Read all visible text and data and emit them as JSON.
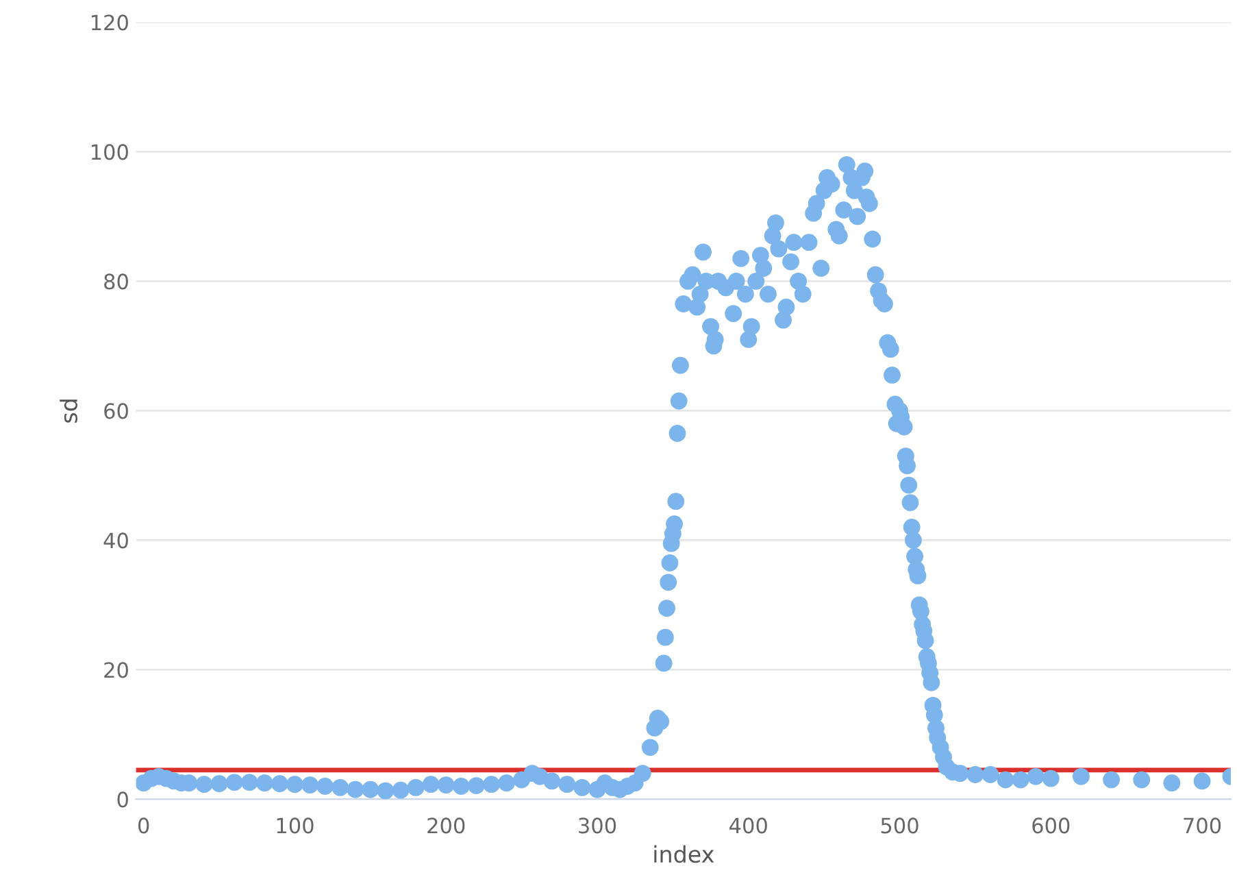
{
  "chart_data": {
    "type": "scatter",
    "xlabel": "index",
    "ylabel": "sd",
    "xlim": [
      -5,
      719
    ],
    "ylim": [
      0,
      120
    ],
    "xticks": [
      0,
      100,
      200,
      300,
      400,
      500,
      600,
      700
    ],
    "yticks": [
      0,
      20,
      40,
      60,
      80,
      100,
      120
    ],
    "grid": "y",
    "marker": "circle",
    "ref_lines": [
      {
        "axis": "y",
        "value": 4.5,
        "color": "#d9302c"
      }
    ],
    "series": [
      {
        "color": "#7cb5ec",
        "x": [
          0,
          5,
          10,
          15,
          20,
          25,
          30,
          40,
          50,
          60,
          70,
          80,
          90,
          100,
          110,
          120,
          130,
          140,
          150,
          160,
          170,
          180,
          190,
          200,
          210,
          220,
          230,
          240,
          250,
          257,
          262,
          270,
          280,
          290,
          300,
          305,
          310,
          315,
          320,
          325,
          330,
          335,
          338,
          340,
          342,
          344,
          345,
          346,
          347,
          348,
          349,
          350,
          351,
          352,
          353,
          354,
          355,
          357,
          360,
          363,
          366,
          368,
          370,
          372,
          375,
          377,
          378,
          380,
          385,
          390,
          392,
          395,
          398,
          400,
          402,
          405,
          408,
          410,
          413,
          416,
          418,
          420,
          423,
          425,
          428,
          430,
          433,
          436,
          440,
          443,
          445,
          448,
          450,
          452,
          455,
          458,
          460,
          463,
          465,
          468,
          470,
          472,
          475,
          477,
          478,
          480,
          482,
          484,
          486,
          488,
          490,
          492,
          494,
          495,
          497,
          498,
          500,
          501,
          503,
          504,
          505,
          506,
          507,
          508,
          509,
          510,
          511,
          512,
          513,
          514,
          515,
          516,
          517,
          518,
          519,
          520,
          521,
          522,
          523,
          524,
          525,
          527,
          529,
          531,
          535,
          540,
          550,
          560,
          570,
          580,
          590,
          600,
          620,
          640,
          660,
          680,
          700,
          719
        ],
        "values": [
          2.5,
          3.2,
          3.5,
          3.2,
          2.8,
          2.5,
          2.5,
          2.3,
          2.4,
          2.6,
          2.6,
          2.5,
          2.4,
          2.3,
          2.2,
          2.0,
          1.8,
          1.5,
          1.5,
          1.3,
          1.4,
          1.8,
          2.3,
          2.2,
          2.0,
          2.1,
          2.3,
          2.5,
          3.0,
          4.0,
          3.5,
          2.8,
          2.3,
          1.8,
          1.5,
          2.5,
          1.8,
          1.5,
          2.0,
          2.5,
          4.0,
          8.0,
          11,
          12.5,
          12,
          21,
          25,
          29.5,
          33.5,
          36.5,
          39.5,
          41,
          42.5,
          46,
          56.5,
          61.5,
          67,
          76.5,
          80,
          81,
          76,
          78,
          84.5,
          80,
          73,
          70,
          71,
          80,
          79,
          75,
          80,
          83.5,
          78,
          71,
          73,
          80,
          84,
          82,
          78,
          87,
          89,
          85,
          74,
          76,
          83,
          86,
          80,
          78,
          86,
          90.5,
          92,
          82,
          94,
          96,
          95,
          88,
          87,
          91,
          98,
          96,
          94,
          90,
          96,
          97,
          93,
          92,
          86.5,
          81,
          78.5,
          77,
          76.5,
          70.5,
          69.5,
          65.5,
          61,
          58,
          60,
          59,
          57.5,
          53,
          51.5,
          48.5,
          45.8,
          42,
          40,
          37.5,
          35.5,
          34.5,
          30,
          29,
          27,
          26,
          24.5,
          22,
          21,
          19.5,
          18,
          14.5,
          13,
          11,
          9.5,
          8,
          6.5,
          5,
          4.2,
          4.0,
          3.8,
          3.8,
          3.0,
          3.0,
          3.5,
          3.2,
          3.5,
          3.0,
          3.0,
          2.5,
          2.8,
          3.5
        ]
      }
    ]
  }
}
